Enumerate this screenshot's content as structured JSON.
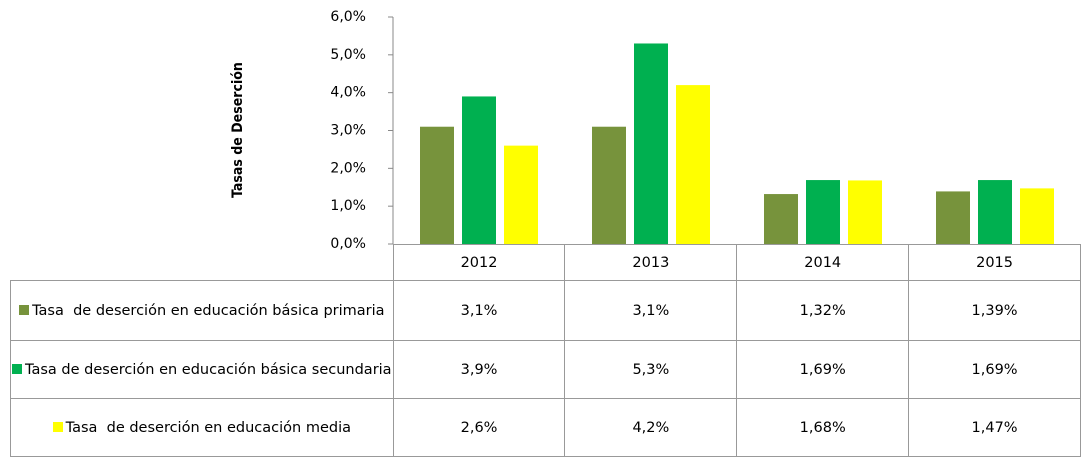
{
  "chart_data": {
    "type": "bar",
    "y_label": "Tasas de Deserción",
    "categories": [
      "2012",
      "2013",
      "2014",
      "2015"
    ],
    "series": [
      {
        "name": "Tasa  de deserción en educación básica primaria",
        "color": "#77933c",
        "values": [
          3.1,
          3.1,
          1.32,
          1.39
        ],
        "value_labels": [
          "3,1%",
          "3,1%",
          "1,32%",
          "1,39%"
        ]
      },
      {
        "name": "Tasa de deserción en educación básica secundaria",
        "color": "#00b050",
        "values": [
          3.9,
          5.3,
          1.69,
          1.69
        ],
        "value_labels": [
          "3,9%",
          "5,3%",
          "1,69%",
          "1,69%"
        ]
      },
      {
        "name": "Tasa  de deserción en educación media",
        "color": "#ffff00",
        "values": [
          2.6,
          4.2,
          1.68,
          1.47
        ],
        "value_labels": [
          "2,6%",
          "4,2%",
          "1,68%",
          "1,47%"
        ]
      }
    ],
    "ylim": [
      0,
      6
    ],
    "yticks": [
      {
        "value": 0,
        "label": "0,0%"
      },
      {
        "value": 1,
        "label": "1,0%"
      },
      {
        "value": 2,
        "label": "2,0%"
      },
      {
        "value": 3,
        "label": "3,0%"
      },
      {
        "value": 4,
        "label": "4,0%"
      },
      {
        "value": 5,
        "label": "5,0%"
      },
      {
        "value": 6,
        "label": "6,0%"
      }
    ]
  }
}
